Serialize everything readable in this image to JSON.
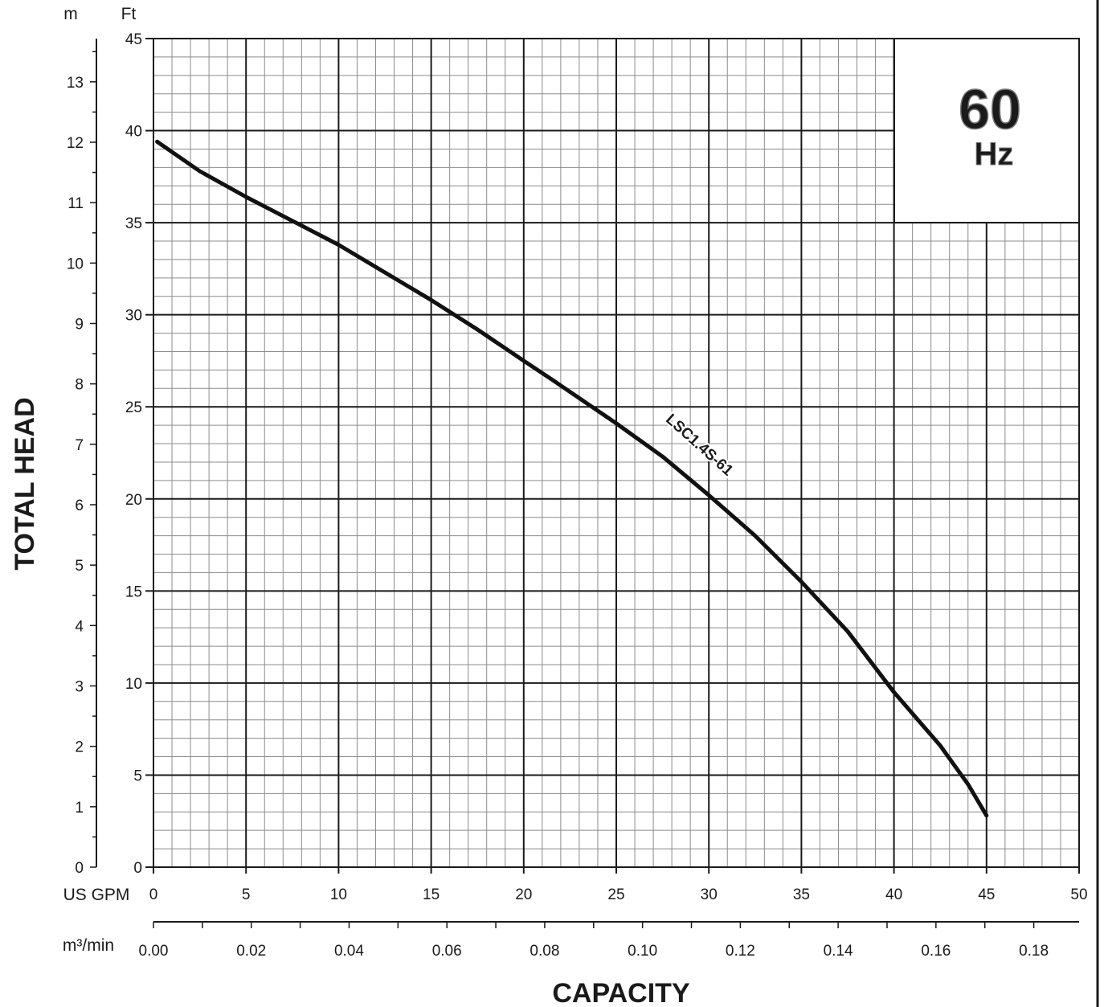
{
  "chart_data": {
    "type": "line",
    "frequency_badge": {
      "value": "60",
      "unit": "Hz"
    },
    "y_left_unit": "m",
    "y_right_unit": "Ft",
    "ylabel": "TOTAL HEAD",
    "xlabel": "CAPACITY",
    "x_primary_unit": "US GPM",
    "x_secondary_unit": "m³/min",
    "ylim_ft": [
      0,
      45
    ],
    "ylim_m": [
      0,
      13.716
    ],
    "xlim_gpm": [
      0,
      50
    ],
    "ft_ticks": [
      0,
      5,
      10,
      15,
      20,
      25,
      30,
      35,
      40,
      45
    ],
    "m_ticks": [
      0,
      1,
      2,
      3,
      4,
      5,
      6,
      7,
      8,
      9,
      10,
      11,
      12,
      13
    ],
    "m_tick_labels": [
      "0",
      "1",
      "2",
      "3",
      "4",
      "5",
      "6",
      "7",
      "8",
      "9",
      "10",
      "11",
      "12",
      "13"
    ],
    "gpm_ticks": [
      0,
      5,
      10,
      15,
      20,
      25,
      30,
      35,
      40,
      45,
      50
    ],
    "m3min_ticks": [
      0.0,
      0.02,
      0.04,
      0.06,
      0.08,
      0.1,
      0.12,
      0.14,
      0.16,
      0.18
    ],
    "m3min_tick_labels": [
      "0.00",
      "0.02",
      "0.04",
      "0.06",
      "0.08",
      "0.10",
      "0.12",
      "0.14",
      "0.16",
      "0.18"
    ],
    "grid": true,
    "series": [
      {
        "name": "LSC1.4S-61",
        "x_gpm": [
          0.2,
          2.5,
          5,
          7.5,
          10,
          12.5,
          15,
          17.5,
          20,
          21.5,
          25,
          27.5,
          30,
          32.5,
          35,
          37.5,
          40,
          42.5,
          44,
          45
        ],
        "y_ft": [
          39.4,
          37.8,
          36.4,
          35.1,
          33.8,
          32.3,
          30.8,
          29.2,
          27.5,
          26.5,
          24.1,
          22.3,
          20.2,
          18.0,
          15.5,
          12.8,
          9.5,
          6.6,
          4.5,
          2.8
        ]
      }
    ]
  }
}
